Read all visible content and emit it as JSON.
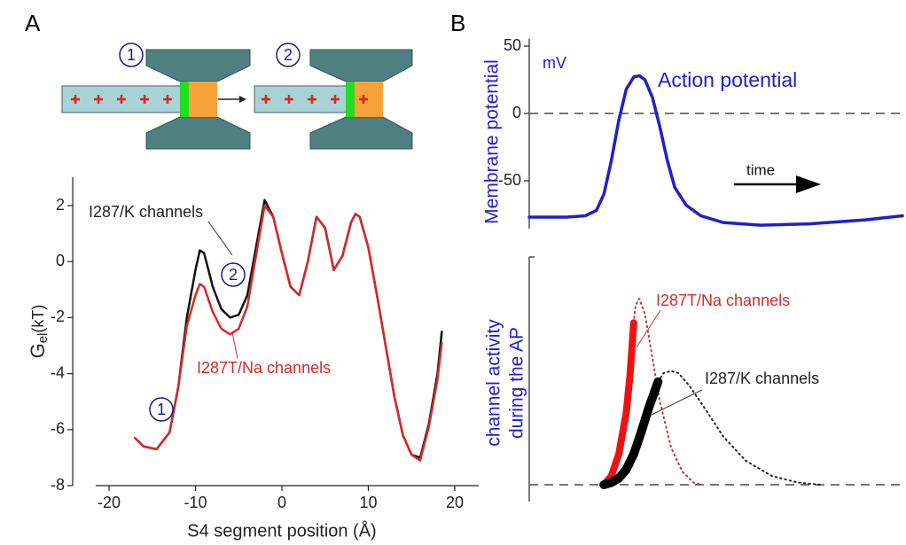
{
  "figure": {
    "panel_labels": [
      "A",
      "B"
    ],
    "diagram_labels": [
      "1",
      "2"
    ]
  },
  "chart_data": [
    {
      "type": "line",
      "x_label": "S4 segment position (Å)",
      "y_label": [
        "G",
        "el",
        "(kT)"
      ],
      "xlim": [
        -22,
        23
      ],
      "ylim": [
        -8,
        3
      ],
      "xticks": [
        -20,
        -10,
        0,
        10,
        20
      ],
      "yticks": [
        -8,
        -6,
        -4,
        -2,
        0,
        2
      ],
      "x": [
        -17,
        -16,
        -14.5,
        -13,
        -12,
        -11,
        -10,
        -9.5,
        -9,
        -8,
        -7,
        -6,
        -5,
        -4,
        -3,
        -2,
        -1,
        0,
        1,
        2,
        3,
        4,
        5,
        6,
        7,
        8,
        8.5,
        9,
        10,
        11,
        12,
        13,
        14,
        15,
        16,
        17,
        18,
        18.5
      ],
      "series": [
        {
          "color": "#111111",
          "values": [
            -6.3,
            -6.6,
            -6.7,
            -6.1,
            -4.5,
            -2,
            -0.3,
            0.4,
            0.3,
            -0.9,
            -1.7,
            -2.0,
            -1.9,
            -1.2,
            0.5,
            2.2,
            1.6,
            0.3,
            -0.9,
            -1.2,
            0,
            1.6,
            1.2,
            -0.3,
            0.2,
            1.4,
            1.7,
            1.6,
            0.5,
            -1.2,
            -3,
            -4.8,
            -6.2,
            -6.9,
            -7.0,
            -5.8,
            -4,
            -2.5
          ]
        },
        {
          "color": "#d42a2a",
          "values": [
            -6.3,
            -6.6,
            -6.7,
            -6.1,
            -4.5,
            -2.3,
            -1.2,
            -0.8,
            -0.9,
            -1.8,
            -2.4,
            -2.6,
            -2.4,
            -1.6,
            0.2,
            2.0,
            1.6,
            0.3,
            -0.9,
            -1.2,
            0,
            1.6,
            1.2,
            -0.3,
            0.2,
            1.4,
            1.7,
            1.6,
            0.5,
            -1.2,
            -3,
            -4.8,
            -6.2,
            -6.9,
            -7.1,
            -5.9,
            -4.2,
            -2.9
          ]
        }
      ],
      "annotations": [
        "I287/K channels",
        "I287T/Na channels"
      ],
      "markers": [
        "2",
        "1"
      ]
    },
    {
      "type": "line",
      "y_label": "Membrane potential",
      "unit": "mV",
      "annotations": [
        "Action potential",
        "time"
      ],
      "xlim": [
        0,
        100
      ],
      "ylim": [
        -85,
        55
      ],
      "yticks": [
        -50,
        0,
        50
      ],
      "reference_line": 0,
      "series": [
        {
          "color": "#1f1fcc",
          "style": "solid",
          "x": [
            0,
            10,
            15,
            18,
            20,
            22,
            24,
            26,
            28,
            29.5,
            31,
            33,
            35,
            37,
            39,
            42,
            46,
            52,
            62,
            75,
            90,
            100
          ],
          "values": [
            -77,
            -77,
            -76,
            -72,
            -60,
            -35,
            -5,
            18,
            27,
            28,
            25,
            12,
            -10,
            -35,
            -55,
            -68,
            -76,
            -81,
            -83,
            -82,
            -79,
            -76
          ]
        }
      ]
    },
    {
      "type": "line",
      "y_label": [
        "channel activity",
        "during the AP"
      ],
      "annotations": [
        "I287T/Na channels",
        "I287/K channels"
      ],
      "xlim": [
        0,
        100
      ],
      "ylim": [
        0,
        1
      ],
      "reference_line": 0,
      "series": [
        {
          "color": "#ee1111",
          "style": "solid",
          "x": [
            20,
            22,
            24,
            26,
            27,
            28
          ],
          "values": [
            0,
            0.04,
            0.14,
            0.33,
            0.5,
            0.74
          ]
        },
        {
          "color": "#cc3333",
          "style": "dotted",
          "x": [
            28,
            28.5,
            29.5,
            31,
            33,
            35,
            38,
            41,
            44,
            46
          ],
          "values": [
            0.74,
            0.82,
            0.85,
            0.78,
            0.58,
            0.38,
            0.17,
            0.06,
            0.01,
            0
          ]
        },
        {
          "color": "#000000",
          "style": "solid",
          "x": [
            20,
            22,
            24,
            26,
            28,
            30,
            32,
            34.5
          ],
          "values": [
            0,
            0.01,
            0.03,
            0.07,
            0.14,
            0.24,
            0.35,
            0.47
          ]
        },
        {
          "color": "#222222",
          "style": "dotted",
          "x": [
            34.5,
            36,
            38,
            40,
            43,
            47,
            52,
            58,
            65,
            72,
            78
          ],
          "values": [
            0.47,
            0.51,
            0.52,
            0.51,
            0.45,
            0.35,
            0.22,
            0.11,
            0.04,
            0.01,
            0
          ]
        }
      ]
    }
  ]
}
